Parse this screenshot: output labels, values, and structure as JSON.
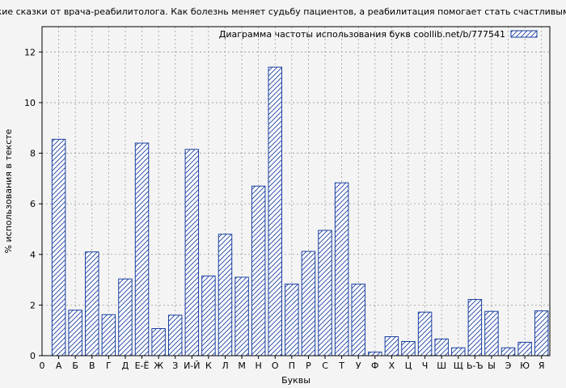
{
  "chart_data": {
    "type": "bar",
    "title": "…нские сказки от врача-реабилитолога. Как болезнь меняет судьбу пациентов, а реабилитация помогает стать счастливыми (М",
    "xlabel": "Буквы",
    "ylabel": "% использования в тексте",
    "ylim": [
      0,
      13
    ],
    "yticks": [
      0,
      2,
      4,
      6,
      8,
      10,
      12
    ],
    "grid": true,
    "legend": {
      "label": "Диаграмма частоты использования букв coollib.net/b/777541",
      "position": "top-right"
    },
    "x_zero_label": "0",
    "categories": [
      "А",
      "Б",
      "В",
      "Г",
      "Д",
      "Е-Ё",
      "Ж",
      "З",
      "И-Й",
      "К",
      "Л",
      "М",
      "Н",
      "О",
      "П",
      "Р",
      "С",
      "Т",
      "У",
      "Ф",
      "Х",
      "Ц",
      "Ч",
      "Ш",
      "Щ",
      "Ь-Ъ",
      "Ы",
      "Э",
      "Ю",
      "Я"
    ],
    "values": [
      8.55,
      1.8,
      4.1,
      1.62,
      3.03,
      8.4,
      1.07,
      1.6,
      8.15,
      3.15,
      4.8,
      3.1,
      6.7,
      11.4,
      2.83,
      4.12,
      4.95,
      6.83,
      2.83,
      0.14,
      0.75,
      0.56,
      1.72,
      0.66,
      0.31,
      2.22,
      1.75,
      0.31,
      0.53,
      1.77
    ]
  }
}
